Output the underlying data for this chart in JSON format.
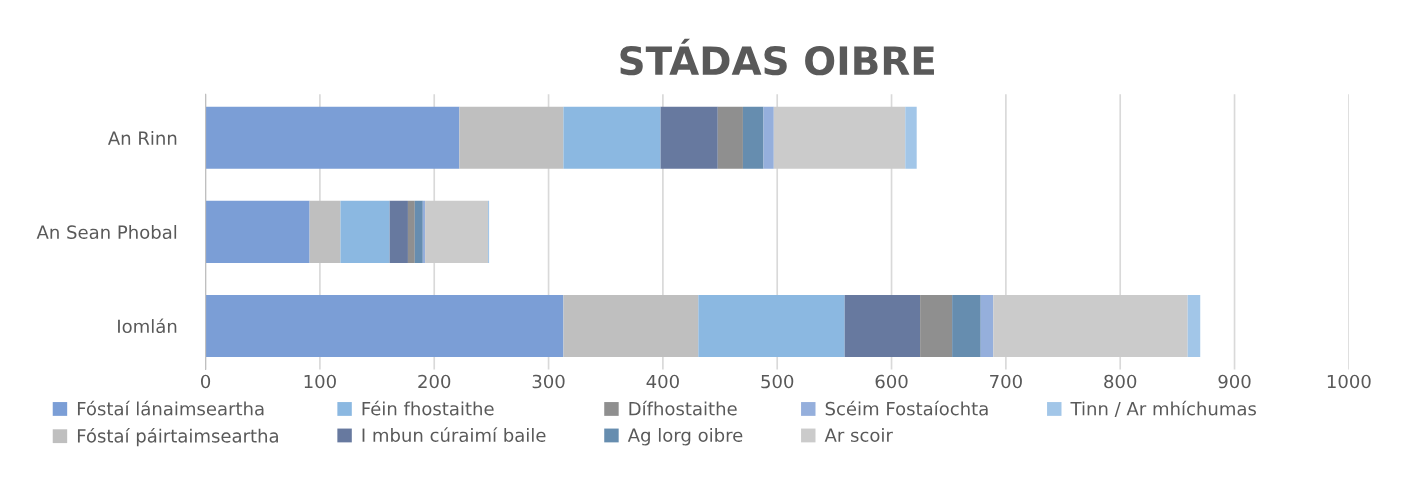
{
  "chart_data": {
    "type": "bar",
    "orientation": "horizontal",
    "stacked": true,
    "title": "STÁDAS OIBRE",
    "categories": [
      "An Rinn",
      "An Sean Phobal",
      "Iomlán"
    ],
    "series": [
      {
        "name": "Fóstaí lánaimseartha",
        "color": "#7b9ed6",
        "values": [
          222,
          91,
          313
        ]
      },
      {
        "name": "Fóstaí páirtaimseartha",
        "color": "#bfbfbf",
        "values": [
          91,
          27,
          118
        ]
      },
      {
        "name": "Féin fhostaithe",
        "color": "#8bb8e1",
        "values": [
          85,
          43,
          128
        ]
      },
      {
        "name": "I mbun cúraimí baile",
        "color": "#67799f",
        "values": [
          50,
          16,
          66
        ]
      },
      {
        "name": "Dífhostaithe",
        "color": "#8f8f8f",
        "values": [
          22,
          6,
          28
        ]
      },
      {
        "name": "Ag lorg oibre",
        "color": "#668daf",
        "values": [
          18,
          7,
          25
        ]
      },
      {
        "name": "Scéim Fostaíochta",
        "color": "#95afdc",
        "values": [
          9,
          2,
          11
        ]
      },
      {
        "name": "Ar scoir",
        "color": "#cbcbcb",
        "values": [
          115,
          55,
          170
        ]
      },
      {
        "name": "Tinn / Ar mhíchumas",
        "color": "#a2c6e8",
        "values": [
          10,
          1,
          11
        ]
      }
    ],
    "xlim": [
      0,
      1000
    ],
    "xticks": [
      0,
      100,
      200,
      300,
      400,
      500,
      600,
      700,
      800,
      900,
      1000
    ],
    "grid": "x",
    "legend": "bottom"
  }
}
